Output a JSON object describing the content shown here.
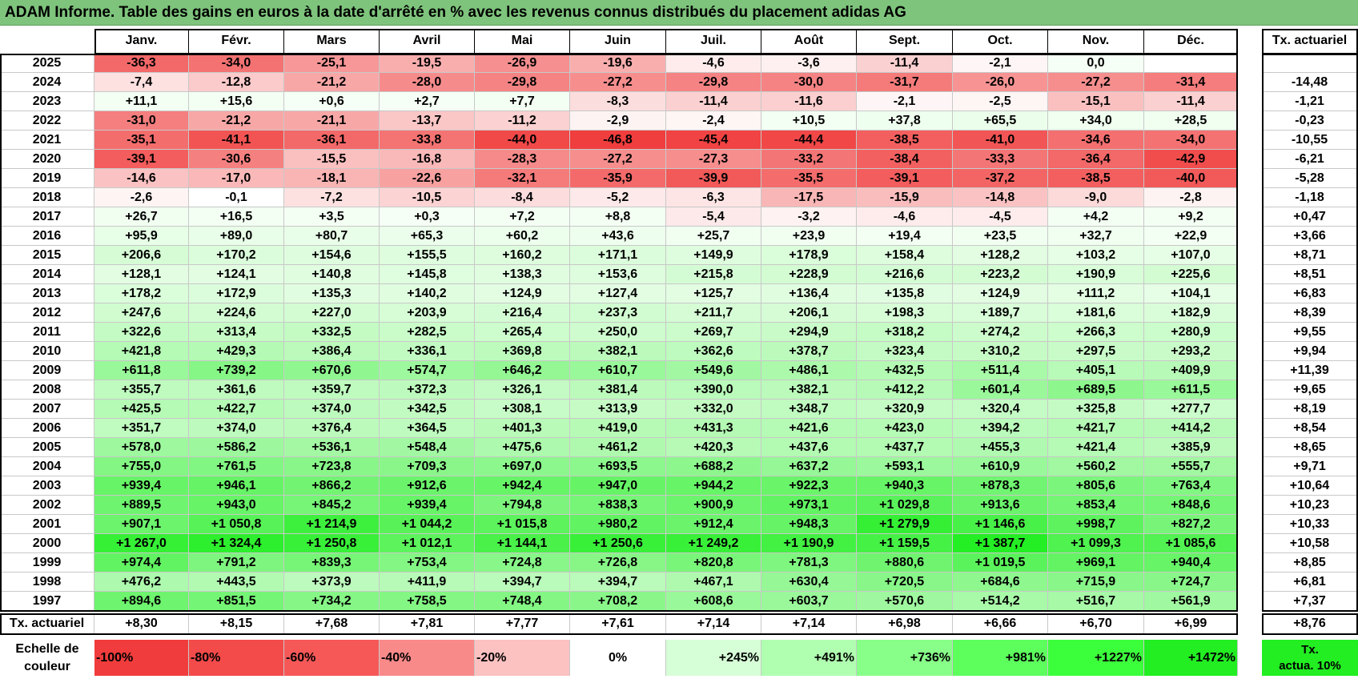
{
  "title": "ADAM Informe. Table des gains en euros à la date d'arrêté en % avec les revenus connus distribués du placement adidas AG",
  "months": [
    "Janv.",
    "Févr.",
    "Mars",
    "Avril",
    "Mai",
    "Juin",
    "Juil.",
    "Août",
    "Sept.",
    "Oct.",
    "Nov.",
    "Déc."
  ],
  "actuarial_header": "Tx. actuariel",
  "rows": [
    {
      "year": "2025",
      "values": [
        "-36,3",
        "-34,0",
        "-25,1",
        "-19,5",
        "-26,9",
        "-19,6",
        "-4,6",
        "-3,6",
        "-11,4",
        "-2,1",
        "0,0",
        ""
      ],
      "tx": ""
    },
    {
      "year": "2024",
      "values": [
        "-7,4",
        "-12,8",
        "-21,2",
        "-28,0",
        "-29,8",
        "-27,2",
        "-29,8",
        "-30,0",
        "-31,7",
        "-26,0",
        "-27,2",
        "-31,4"
      ],
      "tx": "-14,48"
    },
    {
      "year": "2023",
      "values": [
        "+11,1",
        "+15,6",
        "+0,6",
        "+2,7",
        "+7,7",
        "-8,3",
        "-11,4",
        "-11,6",
        "-2,1",
        "-2,5",
        "-15,1",
        "-11,4"
      ],
      "tx": "-1,21"
    },
    {
      "year": "2022",
      "values": [
        "-31,0",
        "-21,2",
        "-21,1",
        "-13,7",
        "-11,2",
        "-2,9",
        "-2,4",
        "+10,5",
        "+37,8",
        "+65,5",
        "+34,0",
        "+28,5"
      ],
      "tx": "-0,23"
    },
    {
      "year": "2021",
      "values": [
        "-35,1",
        "-41,1",
        "-36,1",
        "-33,8",
        "-44,0",
        "-46,8",
        "-45,4",
        "-44,4",
        "-38,5",
        "-41,0",
        "-34,6",
        "-34,0"
      ],
      "tx": "-10,55"
    },
    {
      "year": "2020",
      "values": [
        "-39,1",
        "-30,6",
        "-15,5",
        "-16,8",
        "-28,3",
        "-27,2",
        "-27,3",
        "-33,2",
        "-38,4",
        "-33,3",
        "-36,4",
        "-42,9"
      ],
      "tx": "-6,21"
    },
    {
      "year": "2019",
      "values": [
        "-14,6",
        "-17,0",
        "-18,1",
        "-22,6",
        "-32,1",
        "-35,9",
        "-39,9",
        "-35,5",
        "-39,1",
        "-37,2",
        "-38,5",
        "-40,0"
      ],
      "tx": "-5,28"
    },
    {
      "year": "2018",
      "values": [
        "-2,6",
        "-0,1",
        "-7,2",
        "-10,5",
        "-8,4",
        "-5,2",
        "-6,3",
        "-17,5",
        "-15,9",
        "-14,8",
        "-9,0",
        "-2,8"
      ],
      "tx": "-1,18"
    },
    {
      "year": "2017",
      "values": [
        "+26,7",
        "+16,5",
        "+3,5",
        "+0,3",
        "+7,2",
        "+8,8",
        "-5,4",
        "-3,2",
        "-4,6",
        "-4,5",
        "+4,2",
        "+9,2"
      ],
      "tx": "+0,47"
    },
    {
      "year": "2016",
      "values": [
        "+95,9",
        "+89,0",
        "+80,7",
        "+65,3",
        "+60,2",
        "+43,6",
        "+25,7",
        "+23,9",
        "+19,4",
        "+23,5",
        "+32,7",
        "+22,9"
      ],
      "tx": "+3,66"
    },
    {
      "year": "2015",
      "values": [
        "+206,6",
        "+170,2",
        "+154,6",
        "+155,5",
        "+160,2",
        "+171,1",
        "+149,9",
        "+178,9",
        "+158,4",
        "+128,2",
        "+103,2",
        "+107,0"
      ],
      "tx": "+8,71"
    },
    {
      "year": "2014",
      "values": [
        "+128,1",
        "+124,1",
        "+140,8",
        "+145,8",
        "+138,3",
        "+153,6",
        "+215,8",
        "+228,9",
        "+216,6",
        "+223,2",
        "+190,9",
        "+225,6"
      ],
      "tx": "+8,51"
    },
    {
      "year": "2013",
      "values": [
        "+178,2",
        "+172,9",
        "+135,3",
        "+140,2",
        "+124,9",
        "+127,4",
        "+125,7",
        "+136,4",
        "+135,8",
        "+124,9",
        "+111,2",
        "+104,1"
      ],
      "tx": "+6,83"
    },
    {
      "year": "2012",
      "values": [
        "+247,6",
        "+224,6",
        "+227,0",
        "+203,9",
        "+216,4",
        "+237,3",
        "+211,7",
        "+206,1",
        "+198,3",
        "+189,7",
        "+181,6",
        "+182,9"
      ],
      "tx": "+8,39"
    },
    {
      "year": "2011",
      "values": [
        "+322,6",
        "+313,4",
        "+332,5",
        "+282,5",
        "+265,4",
        "+250,0",
        "+269,7",
        "+294,9",
        "+318,2",
        "+274,2",
        "+266,3",
        "+280,9"
      ],
      "tx": "+9,55"
    },
    {
      "year": "2010",
      "values": [
        "+421,8",
        "+429,3",
        "+386,4",
        "+336,1",
        "+369,8",
        "+382,1",
        "+362,6",
        "+378,7",
        "+323,4",
        "+310,2",
        "+297,5",
        "+293,2"
      ],
      "tx": "+9,94"
    },
    {
      "year": "2009",
      "values": [
        "+611,8",
        "+739,2",
        "+670,6",
        "+574,7",
        "+646,2",
        "+610,7",
        "+549,6",
        "+486,1",
        "+432,5",
        "+511,4",
        "+405,1",
        "+409,9"
      ],
      "tx": "+11,39"
    },
    {
      "year": "2008",
      "values": [
        "+355,7",
        "+361,6",
        "+359,7",
        "+372,3",
        "+326,1",
        "+381,4",
        "+390,0",
        "+382,1",
        "+412,2",
        "+601,4",
        "+689,5",
        "+611,5"
      ],
      "tx": "+9,65"
    },
    {
      "year": "2007",
      "values": [
        "+425,5",
        "+422,7",
        "+374,0",
        "+342,5",
        "+308,1",
        "+313,9",
        "+332,0",
        "+348,7",
        "+320,9",
        "+320,4",
        "+325,8",
        "+277,7"
      ],
      "tx": "+8,19"
    },
    {
      "year": "2006",
      "values": [
        "+351,7",
        "+374,0",
        "+376,4",
        "+364,5",
        "+401,3",
        "+419,0",
        "+431,3",
        "+421,6",
        "+423,0",
        "+394,2",
        "+421,7",
        "+414,2"
      ],
      "tx": "+8,54"
    },
    {
      "year": "2005",
      "values": [
        "+578,0",
        "+586,2",
        "+536,1",
        "+548,4",
        "+475,6",
        "+461,2",
        "+420,3",
        "+437,6",
        "+437,7",
        "+455,3",
        "+421,4",
        "+385,9"
      ],
      "tx": "+8,65"
    },
    {
      "year": "2004",
      "values": [
        "+755,0",
        "+761,5",
        "+723,8",
        "+709,3",
        "+697,0",
        "+693,5",
        "+688,2",
        "+637,2",
        "+593,1",
        "+610,9",
        "+560,2",
        "+555,7"
      ],
      "tx": "+9,71"
    },
    {
      "year": "2003",
      "values": [
        "+939,4",
        "+946,1",
        "+866,2",
        "+912,6",
        "+942,4",
        "+947,0",
        "+944,2",
        "+922,3",
        "+940,3",
        "+878,3",
        "+805,6",
        "+763,4"
      ],
      "tx": "+10,64"
    },
    {
      "year": "2002",
      "values": [
        "+889,5",
        "+943,0",
        "+845,2",
        "+939,4",
        "+794,8",
        "+838,3",
        "+900,9",
        "+973,1",
        "+1 029,8",
        "+913,6",
        "+853,4",
        "+848,6"
      ],
      "tx": "+10,23"
    },
    {
      "year": "2001",
      "values": [
        "+907,1",
        "+1 050,8",
        "+1 214,9",
        "+1 044,2",
        "+1 015,8",
        "+980,2",
        "+912,4",
        "+948,3",
        "+1 279,9",
        "+1 146,6",
        "+998,7",
        "+827,2"
      ],
      "tx": "+10,33"
    },
    {
      "year": "2000",
      "values": [
        "+1 267,0",
        "+1 324,4",
        "+1 250,8",
        "+1 012,1",
        "+1 144,1",
        "+1 250,6",
        "+1 249,2",
        "+1 190,9",
        "+1 159,5",
        "+1 387,7",
        "+1 099,3",
        "+1 085,6"
      ],
      "tx": "+10,58"
    },
    {
      "year": "1999",
      "values": [
        "+974,4",
        "+791,2",
        "+839,3",
        "+753,4",
        "+724,8",
        "+726,8",
        "+820,8",
        "+781,3",
        "+880,6",
        "+1 019,5",
        "+969,1",
        "+940,4"
      ],
      "tx": "+8,85"
    },
    {
      "year": "1998",
      "values": [
        "+476,2",
        "+443,5",
        "+373,9",
        "+411,9",
        "+394,7",
        "+394,7",
        "+467,1",
        "+630,4",
        "+720,5",
        "+684,6",
        "+715,9",
        "+724,7"
      ],
      "tx": "+6,81"
    },
    {
      "year": "1997",
      "values": [
        "+894,6",
        "+851,5",
        "+734,2",
        "+758,5",
        "+748,4",
        "+708,2",
        "+608,6",
        "+603,7",
        "+570,6",
        "+514,2",
        "+516,7",
        "+561,9"
      ],
      "tx": "+7,37"
    }
  ],
  "footer": {
    "label": "Tx. actuariel",
    "values": [
      "+8,30",
      "+8,15",
      "+7,68",
      "+7,81",
      "+7,77",
      "+7,61",
      "+7,14",
      "+7,14",
      "+6,98",
      "+6,66",
      "+6,70",
      "+6,99"
    ],
    "total": "+8,76"
  },
  "legend": {
    "label_line1": "Echelle de",
    "label_line2": "couleur",
    "items": [
      {
        "text": "-100%",
        "color": "#f03c3c",
        "align": "left"
      },
      {
        "text": "-80%",
        "color": "#f34a4a",
        "align": "left"
      },
      {
        "text": "-60%",
        "color": "#f65858",
        "align": "left"
      },
      {
        "text": "-40%",
        "color": "#f98a8a",
        "align": "left"
      },
      {
        "text": "-20%",
        "color": "#fcc1c1",
        "align": "left"
      },
      {
        "text": "0%",
        "color": "#ffffff",
        "align": "center"
      },
      {
        "text": "+245%",
        "color": "#d7ffd7",
        "align": "right"
      },
      {
        "text": "+491%",
        "color": "#b0ffb0",
        "align": "right"
      },
      {
        "text": "+736%",
        "color": "#88ff88",
        "align": "right"
      },
      {
        "text": "+981%",
        "color": "#5dff5d",
        "align": "right"
      },
      {
        "text": "+1227%",
        "color": "#3cff3c",
        "align": "right"
      },
      {
        "text": "+1472%",
        "color": "#22ee22",
        "align": "right"
      }
    ],
    "act_line1": "Tx.",
    "act_line2": "actua. 10%"
  },
  "colors": {
    "title_bg": "#7ec47c",
    "negative_max": "#f03c3c",
    "positive_max": "#22ee22",
    "neutral": "#ffffff"
  }
}
